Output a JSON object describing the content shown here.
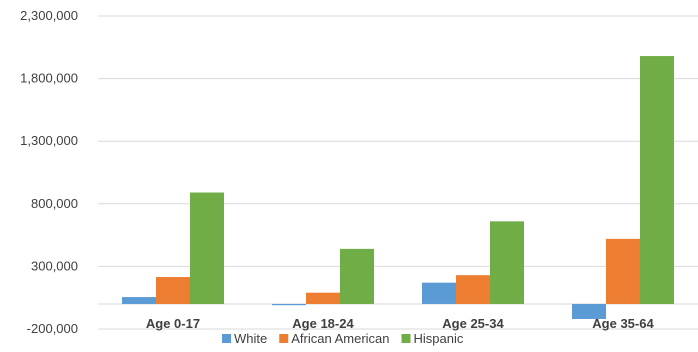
{
  "chart_data": {
    "type": "bar",
    "title_fragment": "",
    "categories": [
      "Age 0-17",
      "Age 18-24",
      "Age 25-34",
      "Age 35-64"
    ],
    "series": [
      {
        "name": "White",
        "color": "#5b9bd5",
        "values": [
          55000,
          -10000,
          170000,
          -120000
        ]
      },
      {
        "name": "African American",
        "color": "#ed7d31",
        "values": [
          215000,
          90000,
          230000,
          520000
        ]
      },
      {
        "name": "Hispanic",
        "color": "#70ad47",
        "values": [
          890000,
          440000,
          660000,
          1980000
        ]
      }
    ],
    "yticks": [
      -200000,
      300000,
      800000,
      1300000,
      1800000,
      2300000
    ],
    "ytick_labels": [
      "-200,000",
      "300,000",
      "800,000",
      "1,300,000",
      "1,800,000",
      "2,300,000"
    ],
    "ylim": [
      -200000,
      2300000
    ],
    "grid": true,
    "legend_position": "bottom"
  }
}
